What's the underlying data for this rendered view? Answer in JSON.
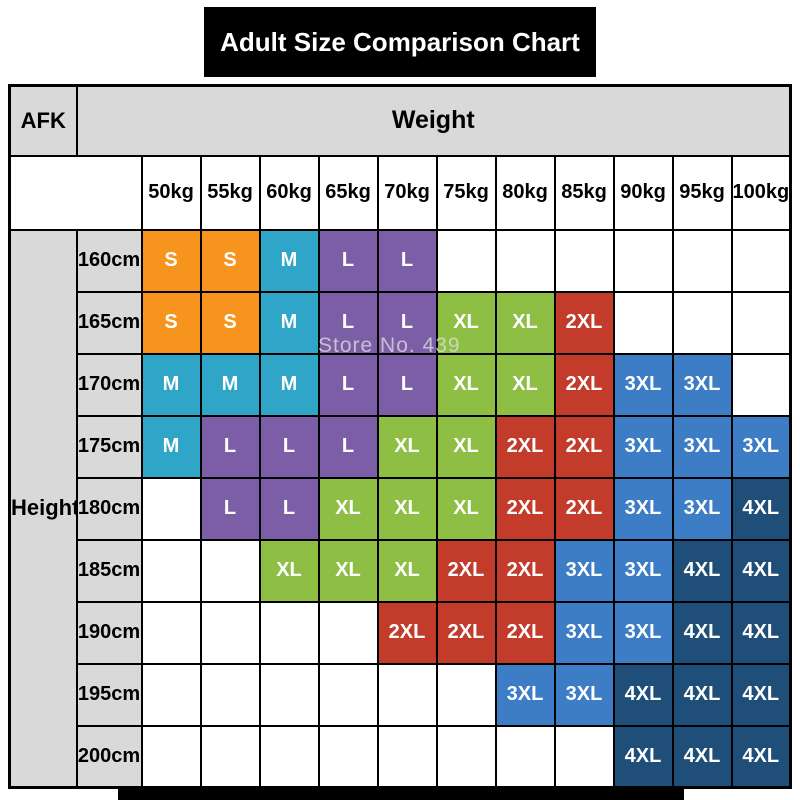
{
  "title": "Adult Size Comparison Chart",
  "corner_label": "AFK",
  "weight_label": "Weight",
  "height_label": "Height",
  "watermark": "Store No. 439",
  "colors": {
    "header_gray": "#d9d9d9",
    "grid_line": "#000000",
    "title_bg": "#000000",
    "title_text": "#ffffff"
  },
  "chart_data": {
    "type": "heatmap",
    "title": "Adult Size Comparison Chart",
    "xlabel": "Weight",
    "ylabel": "Height",
    "columns": [
      "50kg",
      "55kg",
      "60kg",
      "65kg",
      "70kg",
      "75kg",
      "80kg",
      "85kg",
      "90kg",
      "95kg",
      "100kg"
    ],
    "rows": [
      "160cm",
      "165cm",
      "170cm",
      "175cm",
      "180cm",
      "185cm",
      "190cm",
      "195cm",
      "200cm"
    ],
    "values": [
      [
        "S",
        "S",
        "M",
        "L",
        "L",
        "",
        "",
        "",
        "",
        "",
        ""
      ],
      [
        "S",
        "S",
        "M",
        "L",
        "L",
        "XL",
        "XL",
        "2XL",
        "",
        "",
        ""
      ],
      [
        "M",
        "M",
        "M",
        "L",
        "L",
        "XL",
        "XL",
        "2XL",
        "3XL",
        "3XL",
        ""
      ],
      [
        "M",
        "L",
        "L",
        "L",
        "XL",
        "XL",
        "2XL",
        "2XL",
        "3XL",
        "3XL",
        "3XL"
      ],
      [
        "",
        "L",
        "L",
        "XL",
        "XL",
        "XL",
        "2XL",
        "2XL",
        "3XL",
        "3XL",
        "4XL"
      ],
      [
        "",
        "",
        "XL",
        "XL",
        "XL",
        "2XL",
        "2XL",
        "3XL",
        "3XL",
        "4XL",
        "4XL"
      ],
      [
        "",
        "",
        "",
        "",
        "2XL",
        "2XL",
        "2XL",
        "3XL",
        "3XL",
        "4XL",
        "4XL"
      ],
      [
        "",
        "",
        "",
        "",
        "",
        "",
        "3XL",
        "3XL",
        "4XL",
        "4XL",
        "4XL"
      ],
      [
        "",
        "",
        "",
        "",
        "",
        "",
        "",
        "",
        "4XL",
        "4XL",
        "4XL"
      ]
    ],
    "legend": {
      "S": "#f7941e",
      "M": "#2fa5c7",
      "L": "#7c5ea6",
      "XL": "#8fbe45",
      "2XL": "#c23b2b",
      "3XL": "#3d7dc6",
      "4XL": "#1f4e79"
    },
    "grid": true,
    "legend_position": "none"
  }
}
